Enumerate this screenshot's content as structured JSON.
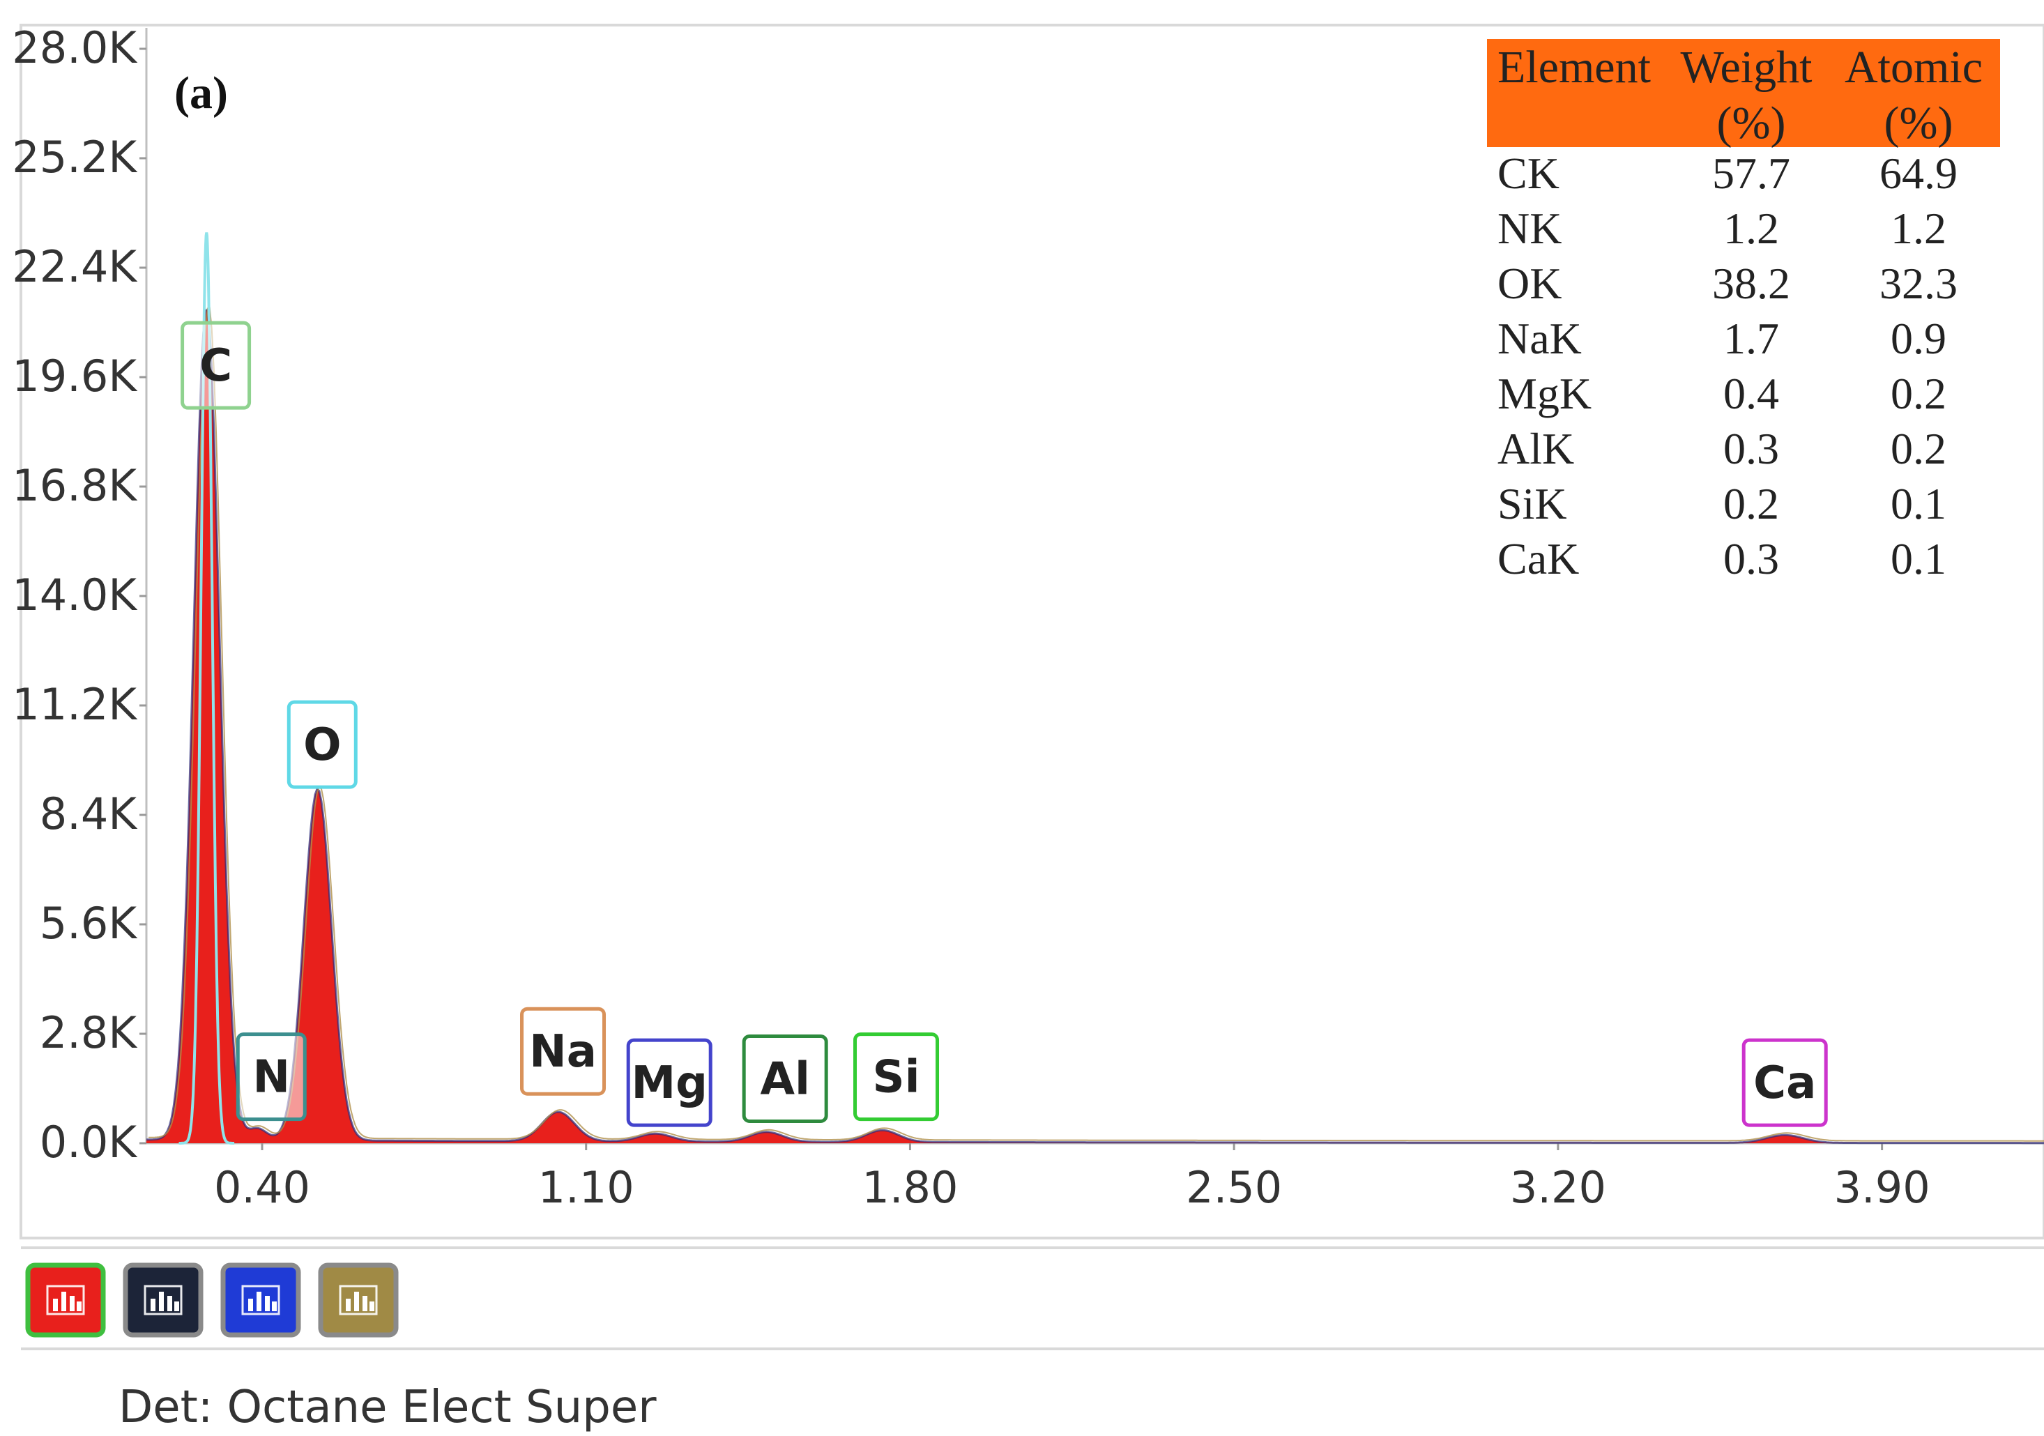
{
  "panel_label": "(a)",
  "detector_text": "Det: Octane Elect Super",
  "chart_data": {
    "type": "line",
    "title": "",
    "xlabel": "",
    "ylabel": "",
    "xlim": [
      0.15,
      4.25
    ],
    "ylim": [
      0,
      28000
    ],
    "x_ticks": [
      {
        "value": 0.4,
        "label": "0.40"
      },
      {
        "value": 1.1,
        "label": "1.10"
      },
      {
        "value": 1.8,
        "label": "1.80"
      },
      {
        "value": 2.5,
        "label": "2.50"
      },
      {
        "value": 3.2,
        "label": "3.20"
      },
      {
        "value": 3.9,
        "label": "3.90"
      }
    ],
    "y_ticks": [
      {
        "value": 0,
        "label": "0.0K"
      },
      {
        "value": 2800,
        "label": "2.8K"
      },
      {
        "value": 5600,
        "label": "5.6K"
      },
      {
        "value": 8400,
        "label": "8.4K"
      },
      {
        "value": 11200,
        "label": "11.2K"
      },
      {
        "value": 14000,
        "label": "14.0K"
      },
      {
        "value": 16800,
        "label": "16.8K"
      },
      {
        "value": 19600,
        "label": "19.6K"
      },
      {
        "value": 22400,
        "label": "22.4K"
      },
      {
        "value": 25200,
        "label": "25.2K"
      },
      {
        "value": 28000,
        "label": "28.0K"
      }
    ],
    "peaks": [
      {
        "element": "C",
        "energy": 0.28,
        "counts": 21300,
        "width": 0.028,
        "color": "#e8201c"
      },
      {
        "element": "N",
        "energy": 0.39,
        "counts": 300,
        "width": 0.02,
        "color": "#e8201c"
      },
      {
        "element": "O",
        "energy": 0.52,
        "counts": 9000,
        "width": 0.03,
        "color": "#e8201c"
      },
      {
        "element": "Na",
        "energy": 1.04,
        "counts": 750,
        "width": 0.035,
        "color": "#e8201c"
      },
      {
        "element": "Mg",
        "energy": 1.25,
        "counts": 200,
        "width": 0.035,
        "color": "#e8201c"
      },
      {
        "element": "Al",
        "energy": 1.49,
        "counts": 250,
        "width": 0.035,
        "color": "#e8201c"
      },
      {
        "element": "Si",
        "energy": 1.74,
        "counts": 300,
        "width": 0.035,
        "color": "#e8201c"
      },
      {
        "element": "Ca",
        "energy": 3.69,
        "counts": 200,
        "width": 0.04,
        "color": "#e8201c"
      }
    ],
    "overlay_peak": {
      "energy": 0.28,
      "counts": 23300,
      "width": 0.012,
      "color": "#8fe3ea"
    },
    "element_labels": [
      {
        "text": "C",
        "energy": 0.3,
        "counts": 19900,
        "border": "#8fd28f"
      },
      {
        "text": "N",
        "energy": 0.42,
        "counts": 1700,
        "border": "#3c8f8f"
      },
      {
        "text": "O",
        "energy": 0.53,
        "counts": 10200,
        "border": "#5fd8e6"
      },
      {
        "text": "Na",
        "energy": 1.05,
        "counts": 2350,
        "border": "#d9925a"
      },
      {
        "text": "Mg",
        "energy": 1.28,
        "counts": 1550,
        "border": "#4444cc"
      },
      {
        "text": "Al",
        "energy": 1.53,
        "counts": 1650,
        "border": "#2e8b3e"
      },
      {
        "text": "Si",
        "energy": 1.77,
        "counts": 1700,
        "border": "#33cc33"
      },
      {
        "text": "Ca",
        "energy": 3.69,
        "counts": 1550,
        "border": "#cc33cc"
      }
    ],
    "table": {
      "header_color": "#ff6a10",
      "columns": [
        {
          "line1": "Element",
          "line2": ""
        },
        {
          "line1": "Weight",
          "line2": "(%)"
        },
        {
          "line1": "Atomic",
          "line2": "(%)"
        }
      ],
      "rows": [
        {
          "element": "CK",
          "weight": "57.7",
          "atomic": "64.9"
        },
        {
          "element": "NK",
          "weight": "1.2",
          "atomic": "1.2"
        },
        {
          "element": "OK",
          "weight": "38.2",
          "atomic": "32.3"
        },
        {
          "element": "NaK",
          "weight": "1.7",
          "atomic": "0.9"
        },
        {
          "element": "MgK",
          "weight": "0.4",
          "atomic": "0.2"
        },
        {
          "element": "AlK",
          "weight": "0.3",
          "atomic": "0.2"
        },
        {
          "element": "SiK",
          "weight": "0.2",
          "atomic": "0.1"
        },
        {
          "element": "CaK",
          "weight": "0.3",
          "atomic": "0.1"
        }
      ]
    }
  },
  "toolbar": {
    "buttons": [
      {
        "name": "spectrum-red-button",
        "icon": "bar-chart-icon",
        "fill": "#e8201c",
        "border": "#3fbf3f"
      },
      {
        "name": "spectrum-black-button",
        "icon": "bar-chart-icon",
        "fill": "#1c2438",
        "border": "#8a8a8a"
      },
      {
        "name": "spectrum-blue-button",
        "icon": "bar-chart-icon",
        "fill": "#1f3bd6",
        "border": "#8a8a8a"
      },
      {
        "name": "spectrum-gold-button",
        "icon": "bar-chart-icon",
        "fill": "#a08a45",
        "border": "#8a8a8a"
      }
    ]
  }
}
